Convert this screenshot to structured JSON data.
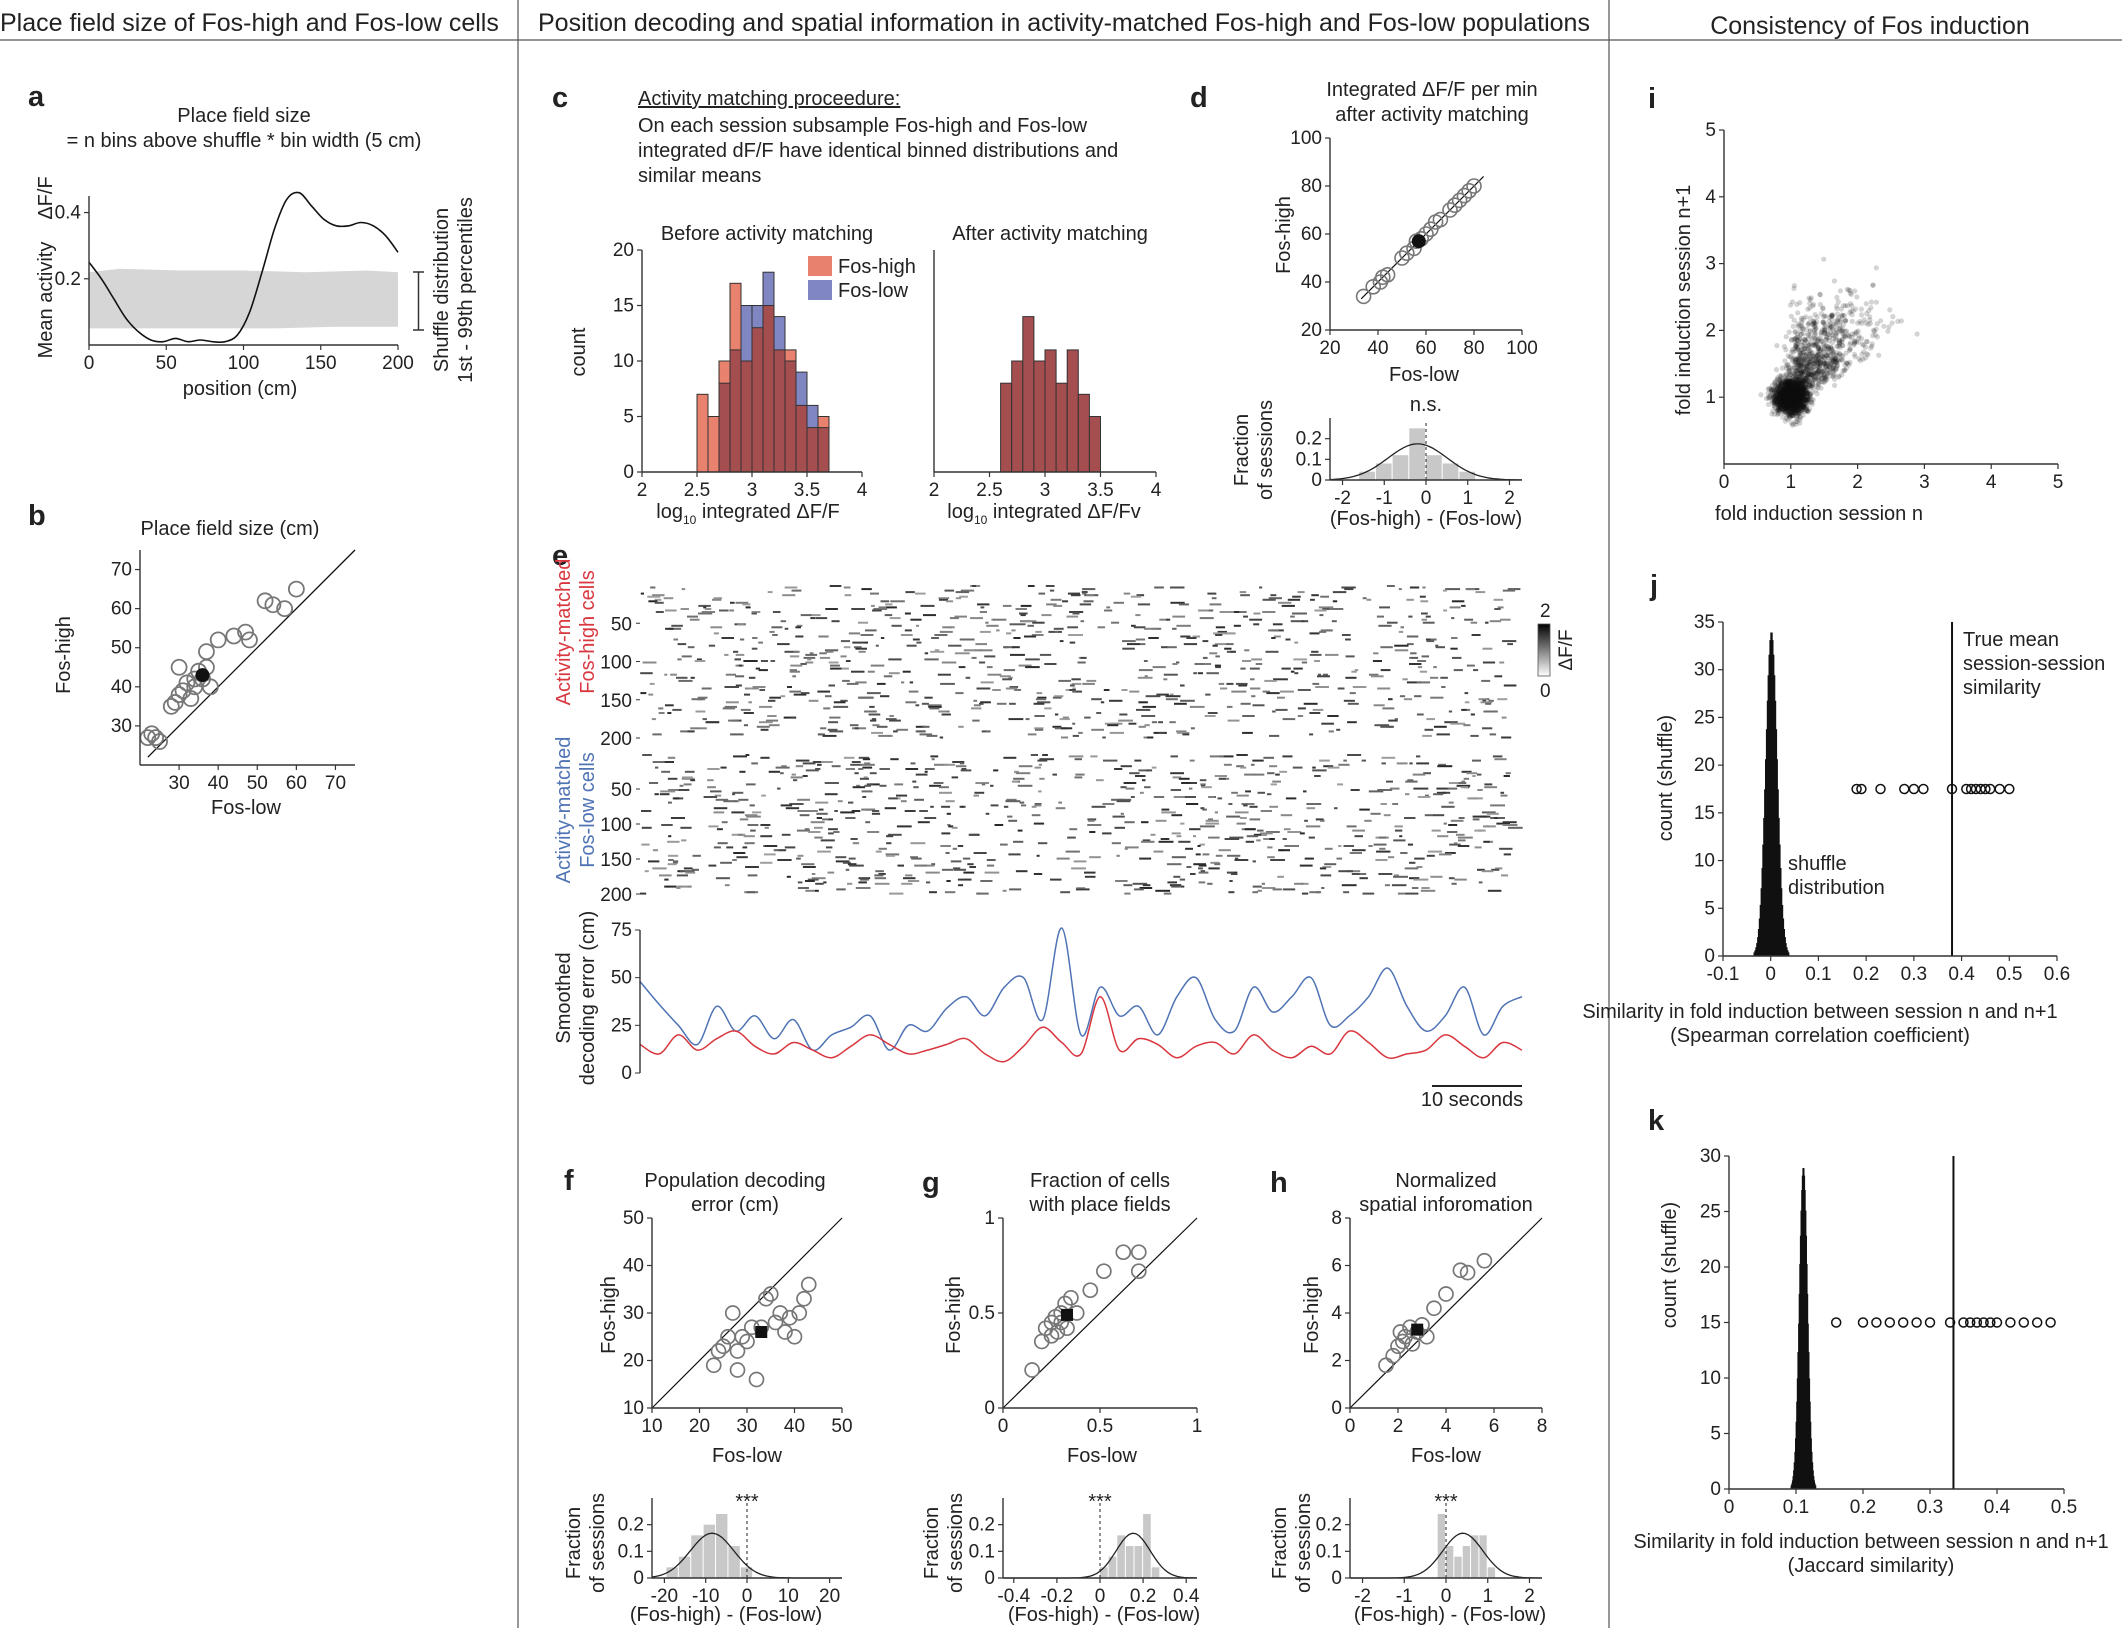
{
  "headers": {
    "left": "Place field size of Fos-high and Fos-low cells",
    "middle": "Position decoding and spatial information in activity-matched Fos-high and Fos-low populations",
    "right": "Consistency of Fos induction"
  },
  "colors": {
    "fos_high": "#d9373f",
    "fos_low": "#4f73b4",
    "hist_high": "#e8826e",
    "hist_low": "#7f86c2",
    "hist_overlap": "#a54e50",
    "shuffle": "#d6d6d6",
    "hist_gray": "#c8c8c8"
  },
  "chart_data": [
    {
      "id": "a",
      "type": "line",
      "title": "Place field size",
      "subtitle": "= n bins above shuffle * bin width (5 cm)",
      "xlabel": "position (cm)",
      "ylabel": "Mean activity",
      "ylabel_unit": "ΔF/F",
      "xticks": [
        "0",
        "50",
        "100",
        "150",
        "200"
      ],
      "yticks": [
        "0.2",
        "0.4"
      ],
      "xlim": [
        0,
        200
      ],
      "ylim": [
        0,
        0.45
      ],
      "shuffle_label": "Shuffle distribution",
      "shuffle_sub": "1st - 99th percentiles",
      "shuffle_lower": [
        [
          0,
          0.05
        ],
        [
          40,
          0.05
        ],
        [
          80,
          0.05
        ],
        [
          120,
          0.05
        ],
        [
          160,
          0.055
        ],
        [
          200,
          0.055
        ]
      ],
      "shuffle_upper": [
        [
          0,
          0.22
        ],
        [
          20,
          0.23
        ],
        [
          60,
          0.225
        ],
        [
          100,
          0.225
        ],
        [
          140,
          0.22
        ],
        [
          180,
          0.225
        ],
        [
          200,
          0.22
        ]
      ],
      "x": [
        0,
        8,
        16,
        24,
        32,
        40,
        48,
        56,
        64,
        72,
        80,
        88,
        96,
        104,
        112,
        120,
        128,
        136,
        144,
        152,
        160,
        168,
        176,
        184,
        192,
        200
      ],
      "y": [
        0.25,
        0.2,
        0.14,
        0.08,
        0.04,
        0.015,
        0.01,
        0.02,
        0.01,
        0.015,
        0.01,
        0.01,
        0.03,
        0.1,
        0.22,
        0.35,
        0.44,
        0.46,
        0.42,
        0.38,
        0.36,
        0.36,
        0.37,
        0.36,
        0.33,
        0.28
      ]
    },
    {
      "id": "b",
      "type": "scatter",
      "title": "Place field size (cm)",
      "xlabel": "Fos-low",
      "ylabel": "Fos-high",
      "xticks": [
        "30",
        "40",
        "50",
        "60",
        "70"
      ],
      "yticks": [
        "30",
        "40",
        "50",
        "60",
        "70"
      ],
      "xlim": [
        20,
        75
      ],
      "ylim": [
        20,
        75
      ],
      "points": [
        [
          22,
          27
        ],
        [
          23,
          28
        ],
        [
          24,
          27
        ],
        [
          25,
          26
        ],
        [
          28,
          35
        ],
        [
          29,
          36
        ],
        [
          30,
          38
        ],
        [
          30,
          45
        ],
        [
          31,
          39
        ],
        [
          32,
          41
        ],
        [
          33,
          37
        ],
        [
          34,
          42
        ],
        [
          34,
          40
        ],
        [
          35,
          44
        ],
        [
          36,
          42
        ],
        [
          37,
          45
        ],
        [
          38,
          40
        ],
        [
          37,
          49
        ],
        [
          40,
          52
        ],
        [
          44,
          53
        ],
        [
          47,
          54
        ],
        [
          48,
          52
        ],
        [
          52,
          62
        ],
        [
          54,
          61
        ],
        [
          57,
          60
        ],
        [
          60,
          65
        ]
      ],
      "mean": [
        36,
        43
      ]
    },
    {
      "id": "c_before",
      "type": "bar",
      "title": "Before activity matching",
      "xlabel": "log10 integrated ΔF/F",
      "xlabel_main": "log",
      "xlabel_sub": "10",
      "xlabel_rest": " integrated ΔF/F",
      "ylabel": "count",
      "xticks": [
        "2",
        "2.5",
        "3",
        "3.5",
        "4"
      ],
      "yticks": [
        "0",
        "5",
        "10",
        "15",
        "20"
      ],
      "xlim": [
        2,
        4
      ],
      "ylim": [
        0,
        20
      ],
      "bin_edges": [
        2.4,
        2.5,
        2.6,
        2.7,
        2.8,
        2.9,
        3.0,
        3.1,
        3.2,
        3.3,
        3.4,
        3.5,
        3.6,
        3.7,
        3.8
      ],
      "series": [
        {
          "name": "Fos-high",
          "values": [
            0,
            7,
            5,
            10,
            17,
            10,
            13,
            15,
            11,
            11,
            6,
            4,
            5,
            0
          ]
        },
        {
          "name": "Fos-low",
          "values": [
            0,
            0,
            0,
            8,
            11,
            15,
            15,
            18,
            14,
            10,
            9,
            6,
            4,
            0
          ]
        }
      ],
      "legend": [
        "Fos-high",
        "Fos-low"
      ]
    },
    {
      "id": "c_after",
      "type": "bar",
      "title": "After activity matching",
      "xlabel": "log10 integrated ΔF/Fv",
      "xlabel_main": "log",
      "xlabel_sub": "10",
      "xlabel_rest": " integrated ΔF/Fv",
      "xticks": [
        "2",
        "2.5",
        "3",
        "3.5",
        "4"
      ],
      "xlim": [
        2,
        4
      ],
      "ylim": [
        0,
        20
      ],
      "bin_edges": [
        2.6,
        2.7,
        2.8,
        2.9,
        3.0,
        3.1,
        3.2,
        3.3,
        3.4,
        3.5,
        3.6
      ],
      "values": [
        8,
        10,
        14,
        10,
        11,
        8,
        11,
        7,
        5,
        0
      ]
    },
    {
      "id": "d",
      "type": "scatter",
      "title": "Integrated ΔF/F per min",
      "subtitle": "after activity matching",
      "xlabel": "Fos-low",
      "ylabel": "Fos-high",
      "xticks": [
        "20",
        "40",
        "60",
        "80",
        "100"
      ],
      "yticks": [
        "20",
        "40",
        "60",
        "80",
        "100"
      ],
      "xlim": [
        20,
        100
      ],
      "ylim": [
        20,
        100
      ],
      "points": [
        [
          34,
          34
        ],
        [
          38,
          38
        ],
        [
          41,
          40
        ],
        [
          42,
          42
        ],
        [
          44,
          43
        ],
        [
          50,
          50
        ],
        [
          52,
          52
        ],
        [
          55,
          54
        ],
        [
          56,
          57
        ],
        [
          58,
          58
        ],
        [
          60,
          60
        ],
        [
          62,
          62
        ],
        [
          64,
          65
        ],
        [
          66,
          66
        ],
        [
          70,
          70
        ],
        [
          72,
          72
        ],
        [
          74,
          74
        ],
        [
          76,
          76
        ],
        [
          78,
          78
        ],
        [
          80,
          80
        ]
      ],
      "mean": [
        57,
        57
      ],
      "inset": {
        "xlabel": "(Fos-high) - (Fos-low)",
        "ylabel": "Fraction of sessions",
        "annotation": "n.s.",
        "xticks": [
          "-2",
          "-1",
          "0",
          "1",
          "2"
        ],
        "yticks": [
          "0",
          "0.1",
          "0.2"
        ],
        "bins": [
          -1.8,
          -1.4,
          -1.0,
          -0.6,
          -0.2,
          0.2,
          0.6,
          1.0,
          1.4
        ],
        "values": [
          0.0,
          0.04,
          0.08,
          0.12,
          0.25,
          0.12,
          0.08,
          0.04,
          0.0
        ]
      }
    },
    {
      "id": "e",
      "type": "heatmap",
      "high_label1": "Activity-matched",
      "high_label2": "Fos-high cells",
      "low_label1": "Activity-matched",
      "low_label2": "Fos-low cells",
      "yticks": [
        "50",
        "100",
        "150",
        "200"
      ],
      "colorbar_max": "2",
      "colorbar_min": "0",
      "colorbar_label": "ΔF/F",
      "error_ylabel1": "Smoothed",
      "error_ylabel2": "decoding error (cm)",
      "error_yticks": [
        "0",
        "25",
        "50",
        "75"
      ],
      "scale_label": "10 seconds",
      "fos_high_error": [
        15,
        10,
        20,
        12,
        18,
        22,
        14,
        10,
        16,
        12,
        8,
        14,
        20,
        15,
        10,
        12,
        15,
        18,
        10,
        6,
        14,
        24,
        16,
        10,
        40,
        12,
        18,
        15,
        8,
        14,
        16,
        10,
        20,
        12,
        8,
        14,
        10,
        22,
        16,
        8,
        10,
        12,
        20,
        14,
        8,
        16,
        12
      ],
      "fos_low_error": [
        48,
        36,
        25,
        15,
        35,
        22,
        30,
        18,
        28,
        12,
        20,
        24,
        30,
        12,
        25,
        22,
        34,
        40,
        30,
        45,
        50,
        28,
        76,
        20,
        45,
        30,
        35,
        20,
        40,
        50,
        28,
        22,
        45,
        32,
        40,
        50,
        25,
        30,
        40,
        55,
        35,
        22,
        30,
        45,
        20,
        35,
        40
      ]
    },
    {
      "id": "f",
      "type": "scatter",
      "title": "Population decoding",
      "subtitle": "error (cm)",
      "xlabel": "Fos-low",
      "ylabel": "Fos-high",
      "xticks": [
        "10",
        "20",
        "30",
        "40",
        "50"
      ],
      "yticks": [
        "10",
        "20",
        "30",
        "40",
        "50"
      ],
      "xlim": [
        10,
        50
      ],
      "ylim": [
        10,
        50
      ],
      "points": [
        [
          23,
          19
        ],
        [
          24,
          22
        ],
        [
          25,
          23
        ],
        [
          26,
          25
        ],
        [
          27,
          30
        ],
        [
          28,
          22
        ],
        [
          28,
          18
        ],
        [
          29,
          25
        ],
        [
          30,
          24
        ],
        [
          31,
          27
        ],
        [
          32,
          16
        ],
        [
          33,
          27
        ],
        [
          34,
          33
        ],
        [
          35,
          34
        ],
        [
          36,
          28
        ],
        [
          37,
          30
        ],
        [
          38,
          26
        ],
        [
          39,
          29
        ],
        [
          40,
          25
        ],
        [
          41,
          30
        ],
        [
          42,
          33
        ],
        [
          43,
          36
        ]
      ],
      "mean": [
        33,
        26
      ],
      "inset": {
        "xlabel": "(Fos-high) - (Fos-low)",
        "ylabel": "Fraction of sessions",
        "annotation": "***",
        "xticks": [
          "-20",
          "-10",
          "0",
          "10",
          "20"
        ],
        "yticks": [
          "0",
          "0.1",
          "0.2"
        ],
        "bins": [
          -18,
          -15,
          -12,
          -9,
          -6,
          -3,
          0,
          3
        ],
        "values": [
          0.04,
          0.08,
          0.16,
          0.2,
          0.24,
          0.12,
          0.04,
          0.0
        ]
      }
    },
    {
      "id": "g",
      "type": "scatter",
      "title": "Fraction of cells",
      "subtitle": "with place fields",
      "xlabel": "Fos-low",
      "ylabel": "Fos-high",
      "xticks": [
        "0",
        "0.5",
        "1"
      ],
      "yticks": [
        "0",
        "0.5",
        "1"
      ],
      "xlim": [
        0,
        1
      ],
      "ylim": [
        0,
        1
      ],
      "points": [
        [
          0.15,
          0.2
        ],
        [
          0.2,
          0.35
        ],
        [
          0.22,
          0.42
        ],
        [
          0.25,
          0.38
        ],
        [
          0.25,
          0.45
        ],
        [
          0.27,
          0.48
        ],
        [
          0.28,
          0.4
        ],
        [
          0.3,
          0.5
        ],
        [
          0.3,
          0.45
        ],
        [
          0.32,
          0.55
        ],
        [
          0.33,
          0.42
        ],
        [
          0.35,
          0.58
        ],
        [
          0.38,
          0.5
        ],
        [
          0.45,
          0.62
        ],
        [
          0.52,
          0.72
        ],
        [
          0.62,
          0.82
        ],
        [
          0.7,
          0.82
        ],
        [
          0.7,
          0.72
        ]
      ],
      "mean": [
        0.33,
        0.49
      ],
      "inset": {
        "xlabel": "(Fos-high) - (Fos-low)",
        "ylabel": "Fraction of sessions",
        "annotation": "***",
        "xticks": [
          "-0.4",
          "-0.2",
          "0",
          "0.2",
          "0.4"
        ],
        "yticks": [
          "0",
          "0.1",
          "0.2"
        ],
        "bins": [
          0.02,
          0.06,
          0.1,
          0.14,
          0.18,
          0.22,
          0.26
        ],
        "values": [
          0.04,
          0.08,
          0.16,
          0.12,
          0.12,
          0.24,
          0.04
        ]
      }
    },
    {
      "id": "h",
      "type": "scatter",
      "title": "Normalized",
      "subtitle": "spatial inforomation",
      "xlabel": "Fos-low",
      "ylabel": "Fos-high",
      "xticks": [
        "0",
        "2",
        "4",
        "6",
        "8"
      ],
      "yticks": [
        "0",
        "2",
        "4",
        "6",
        "8"
      ],
      "xlim": [
        0,
        8
      ],
      "ylim": [
        0,
        8
      ],
      "points": [
        [
          1.5,
          1.8
        ],
        [
          1.8,
          2.2
        ],
        [
          2.0,
          2.6
        ],
        [
          2.2,
          2.8
        ],
        [
          2.3,
          3.0
        ],
        [
          2.5,
          3.4
        ],
        [
          2.6,
          2.7
        ],
        [
          2.8,
          3.2
        ],
        [
          3.0,
          3.5
        ],
        [
          3.2,
          3.0
        ],
        [
          3.5,
          4.2
        ],
        [
          4.0,
          4.8
        ],
        [
          4.6,
          5.8
        ],
        [
          4.9,
          5.7
        ],
        [
          5.6,
          6.2
        ],
        [
          2.1,
          3.2
        ]
      ],
      "mean": [
        2.8,
        3.3
      ],
      "inset": {
        "xlabel": "(Fos-high) - (Fos-low)",
        "ylabel": "Fraction of sessions",
        "annotation": "***",
        "xticks": [
          "-2",
          "-1",
          "0",
          "1",
          "2"
        ],
        "yticks": [
          "0",
          "0.1",
          "0.2"
        ],
        "bins": [
          -0.1,
          0.1,
          0.3,
          0.5,
          0.7,
          0.9,
          1.1
        ],
        "values": [
          0.24,
          0.12,
          0.08,
          0.12,
          0.16,
          0.16,
          0.04
        ]
      }
    },
    {
      "id": "i",
      "type": "scatter",
      "xlabel": "fold induction session n",
      "ylabel": "fold induction session n+1",
      "xticks": [
        "0",
        "1",
        "2",
        "3",
        "4",
        "5"
      ],
      "yticks": [
        "1",
        "2",
        "3",
        "4",
        "5"
      ],
      "xlim": [
        0,
        5
      ],
      "ylim": [
        0,
        5
      ]
    },
    {
      "id": "j",
      "type": "bar",
      "xlabel": "Similarity in fold induction between session n and n+1",
      "xlabel2": "(Spearman correlation coefficient)",
      "ylabel": "count (shuffle)",
      "xticks": [
        "-0.1",
        "0",
        "0.1",
        "0.2",
        "0.3",
        "0.4",
        "0.5",
        "0.6"
      ],
      "yticks": [
        "0",
        "5",
        "10",
        "15",
        "20",
        "25",
        "30",
        "35"
      ],
      "xlim": [
        -0.1,
        0.6
      ],
      "ylim": [
        0,
        35
      ],
      "true_mean": 0.38,
      "true_label1": "True mean",
      "true_label2": "session-session",
      "true_label3": "similarity",
      "shuffle_label1": "shuffle",
      "shuffle_label2": "distribution",
      "session_values": [
        0.18,
        0.19,
        0.23,
        0.28,
        0.3,
        0.32,
        0.38,
        0.41,
        0.42,
        0.43,
        0.44,
        0.45,
        0.46,
        0.48,
        0.5
      ],
      "marker_y": 17.5
    },
    {
      "id": "k",
      "type": "bar",
      "xlabel": "Similarity in fold induction between session n and n+1",
      "xlabel2": "(Jaccard similarity)",
      "ylabel": "count (shuffle)",
      "xticks": [
        "0",
        "0.1",
        "0.2",
        "0.3",
        "0.4",
        "0.5"
      ],
      "yticks": [
        "0",
        "5",
        "10",
        "15",
        "20",
        "25",
        "30"
      ],
      "xlim": [
        0,
        0.5
      ],
      "ylim": [
        0,
        30
      ],
      "true_mean": 0.335,
      "session_values": [
        0.16,
        0.2,
        0.22,
        0.24,
        0.26,
        0.28,
        0.3,
        0.33,
        0.35,
        0.36,
        0.37,
        0.38,
        0.39,
        0.4,
        0.42,
        0.44,
        0.46,
        0.48
      ],
      "marker_y": 15
    }
  ],
  "labels": {
    "c_heading": "Activity matching proceedure:",
    "c_text1": "On each session subsample Fos-high and Fos-low",
    "c_text2": "integrated dF/F have identical binned distributions and",
    "c_text3": "similar means"
  }
}
